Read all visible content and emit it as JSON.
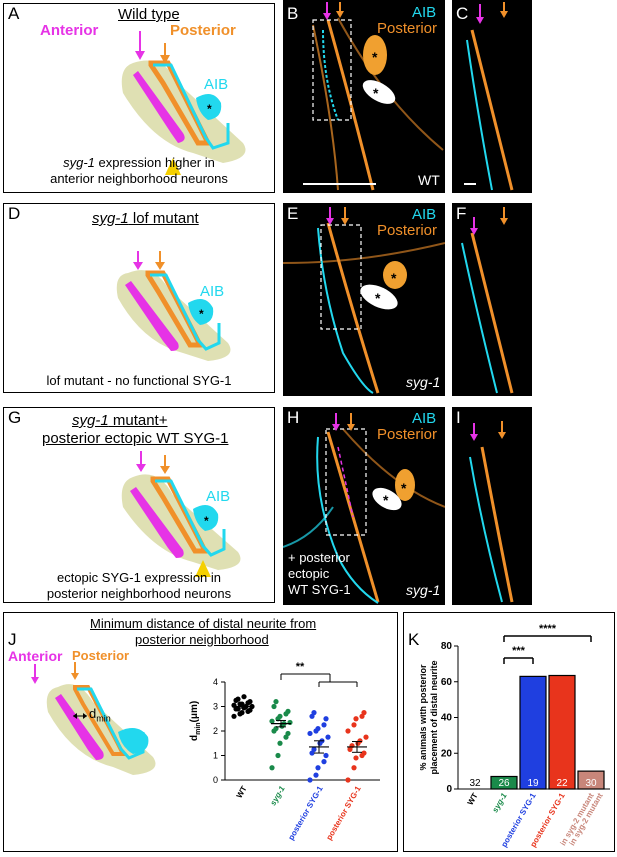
{
  "panels": {
    "A": {
      "letter": "A",
      "title": "Wild type",
      "anterior": "Anterior",
      "posterior": "Posterior",
      "aib": "AIB",
      "caption_italic": "syg-1",
      "caption_rest": " expression higher in",
      "caption_line2": "anterior neighborhood neurons"
    },
    "B": {
      "letter": "B",
      "aib": "AIB",
      "posterior": "Posterior",
      "corner": "WT"
    },
    "C": {
      "letter": "C"
    },
    "D": {
      "letter": "D",
      "title_italic": "syg-1",
      "title_rest": " lof mutant",
      "aib": "AIB",
      "caption": "lof mutant - no functional SYG-1"
    },
    "E": {
      "letter": "E",
      "aib": "AIB",
      "posterior": "Posterior",
      "corner": "syg-1"
    },
    "F": {
      "letter": "F"
    },
    "G": {
      "letter": "G",
      "title_italic": "syg-1",
      "title_rest": " mutant+",
      "title_line2": "posterior ectopic WT SYG-1",
      "aib": "AIB",
      "caption_line1": "ectopic SYG-1 expression in",
      "caption_line2": "posterior neighborhood neurons"
    },
    "H": {
      "letter": "H",
      "aib": "AIB",
      "posterior": "Posterior",
      "corner": "syg-1",
      "overlay_line1": "+ posterior",
      "overlay_line2": "ectopic",
      "overlay_line3": "WT SYG-1"
    },
    "I": {
      "letter": "I"
    },
    "J": {
      "letter": "J",
      "title_line1": "Minimum distance of distal neurite from",
      "title_line2": "posterior neighborhood",
      "anterior": "Anterior",
      "posterior": "Posterior",
      "dmin": "d",
      "dmin_sub": "min"
    },
    "K": {
      "letter": "K"
    }
  },
  "colors": {
    "magenta": "#e633e6",
    "orange": "#f0902a",
    "cyan": "#22d8ee",
    "olive": "#dfe0b3",
    "yellow": "#f5d000",
    "green": "#1a8a4a",
    "blue": "#1f3fe0",
    "red": "#e8341c",
    "gray": "#c8867a"
  },
  "chart_data": [
    {
      "type": "scatter",
      "ylabel": "d",
      "ylabel_sub": "min",
      "ylabel_unit": "(μm)",
      "ylim": [
        0,
        4
      ],
      "yticks": [
        0,
        1,
        2,
        3,
        4
      ],
      "categories": [
        "WT",
        "syg-1",
        "posterior SYG-1",
        "posterior SYG-1"
      ],
      "category_colors": [
        "#000000",
        "#1a8a4a",
        "#1f3fe0",
        "#e8341c"
      ],
      "category_italic": [
        false,
        true,
        false,
        false
      ],
      "means": [
        3.0,
        2.3,
        1.35,
        1.35
      ],
      "sem": [
        0.06,
        0.13,
        0.25,
        0.22
      ],
      "points": [
        [
          2.6,
          2.7,
          2.75,
          2.8,
          2.85,
          2.9,
          2.9,
          2.95,
          3.0,
          3.0,
          3.05,
          3.1,
          3.1,
          3.15,
          3.2,
          3.25,
          3.3,
          3.4
        ],
        [
          0.5,
          1.0,
          1.5,
          1.75,
          1.9,
          2.0,
          2.1,
          2.2,
          2.3,
          2.35,
          2.4,
          2.5,
          2.6,
          2.7,
          2.8,
          3.0,
          3.2
        ],
        [
          0.0,
          0.2,
          0.5,
          0.75,
          1.0,
          1.1,
          1.25,
          1.5,
          1.6,
          1.75,
          1.9,
          2.0,
          2.1,
          2.25,
          2.5,
          2.6,
          2.75
        ],
        [
          0.0,
          0.5,
          0.9,
          1.0,
          1.1,
          1.25,
          1.4,
          1.5,
          1.6,
          1.75,
          2.0,
          2.25,
          2.5,
          2.6,
          2.75
        ]
      ],
      "significance": "**"
    },
    {
      "type": "bar",
      "ylabel_line1": "% animals with posterior",
      "ylabel_line2": "placement of distal neurite",
      "ylim": [
        0,
        80
      ],
      "yticks": [
        0,
        20,
        40,
        60,
        80
      ],
      "categories": [
        "WT",
        "syg-1",
        "posterior SYG-1",
        "posterior SYG-1",
        "in syg-2 mutant"
      ],
      "bars": [
        {
          "label": "WT",
          "value": 0,
          "n": "32",
          "color": "#000000"
        },
        {
          "label": "syg-1",
          "value": 7,
          "n": "26",
          "color": "#1a8a4a"
        },
        {
          "label": "posterior SYG-1",
          "value": 63,
          "n": "19",
          "color": "#1f3fe0"
        },
        {
          "label": "posterior SYG-1",
          "value": 63.5,
          "n": "22",
          "color": "#e8341c"
        },
        {
          "label": "posterior SYG-1 in syg-2 mutant",
          "value": 10,
          "n": "30",
          "color": "#c8867a"
        }
      ],
      "significance": [
        "***",
        "****"
      ]
    }
  ]
}
